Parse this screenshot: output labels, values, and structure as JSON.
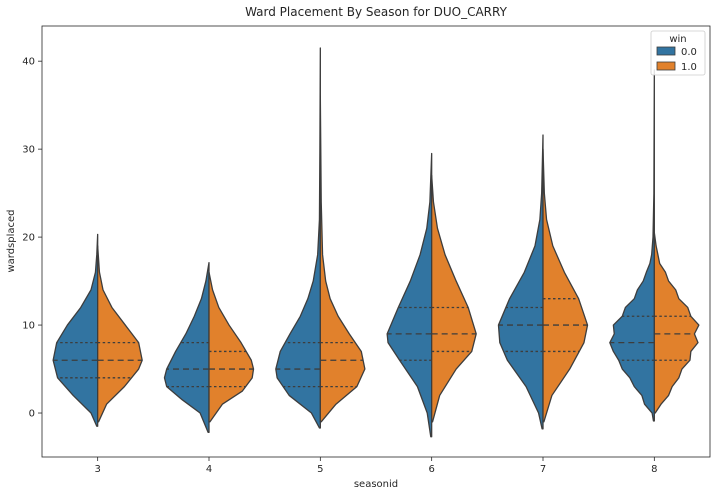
{
  "chart_data": {
    "type": "violin",
    "title": "Ward Placement By Season for DUO_CARRY",
    "xlabel": "seasonid",
    "ylabel": "wardsplaced",
    "categories": [
      "3",
      "4",
      "5",
      "6",
      "7",
      "8"
    ],
    "yticks": [
      0,
      10,
      20,
      30,
      40
    ],
    "ylim": [
      -5,
      44
    ],
    "legend": {
      "title": "win",
      "placement": "top-right",
      "entries": [
        "0.0",
        "1.0"
      ]
    },
    "colors": {
      "0.0": "#3274a1",
      "1.0": "#e1812c",
      "outline": "#3d3d3d"
    },
    "split": true,
    "inner": "quartile",
    "series": [
      {
        "name": "0.0",
        "violins": [
          {
            "ymin": -1.5,
            "ymax": 20.3,
            "quartiles": [
              4,
              6,
              8
            ],
            "profile": [
              [
                -1.5,
                0.02
              ],
              [
                0,
                0.15
              ],
              [
                2,
                0.55
              ],
              [
                4,
                0.9
              ],
              [
                6,
                1.0
              ],
              [
                8,
                0.92
              ],
              [
                10,
                0.68
              ],
              [
                12,
                0.38
              ],
              [
                14,
                0.15
              ],
              [
                16,
                0.05
              ],
              [
                18,
                0.02
              ],
              [
                20.3,
                0.0
              ]
            ]
          },
          {
            "ymin": -2.2,
            "ymax": 17.1,
            "quartiles": [
              3,
              5,
              8
            ],
            "profile": [
              [
                -2.2,
                0.02
              ],
              [
                0,
                0.2
              ],
              [
                1.5,
                0.6
              ],
              [
                3,
                0.95
              ],
              [
                4,
                1.0
              ],
              [
                5,
                0.95
              ],
              [
                7,
                0.75
              ],
              [
                9,
                0.52
              ],
              [
                11,
                0.33
              ],
              [
                13,
                0.17
              ],
              [
                15,
                0.07
              ],
              [
                17.1,
                0.0
              ]
            ]
          },
          {
            "ymin": -1.7,
            "ymax": 41.5,
            "quartiles": [
              3,
              5,
              8
            ],
            "profile": [
              [
                -1.7,
                0.02
              ],
              [
                0,
                0.2
              ],
              [
                2,
                0.7
              ],
              [
                4,
                0.97
              ],
              [
                5,
                1.0
              ],
              [
                7,
                0.9
              ],
              [
                9,
                0.68
              ],
              [
                11,
                0.45
              ],
              [
                13,
                0.28
              ],
              [
                15,
                0.16
              ],
              [
                18,
                0.06
              ],
              [
                22,
                0.02
              ],
              [
                30,
                0.01
              ],
              [
                41.5,
                0.0
              ]
            ]
          },
          {
            "ymin": -2.7,
            "ymax": 29.5,
            "quartiles": [
              6,
              9,
              12
            ],
            "profile": [
              [
                -2.7,
                0.02
              ],
              [
                0,
                0.1
              ],
              [
                3,
                0.32
              ],
              [
                6,
                0.72
              ],
              [
                8,
                0.98
              ],
              [
                9,
                1.0
              ],
              [
                12,
                0.75
              ],
              [
                15,
                0.48
              ],
              [
                18,
                0.26
              ],
              [
                21,
                0.11
              ],
              [
                24,
                0.04
              ],
              [
                29.5,
                0.0
              ]
            ]
          },
          {
            "ymin": -1.8,
            "ymax": 31.6,
            "quartiles": [
              7,
              10,
              12
            ],
            "profile": [
              [
                -1.8,
                0.02
              ],
              [
                0,
                0.1
              ],
              [
                3,
                0.38
              ],
              [
                6,
                0.8
              ],
              [
                8,
                0.97
              ],
              [
                10,
                1.0
              ],
              [
                13,
                0.75
              ],
              [
                16,
                0.42
              ],
              [
                19,
                0.18
              ],
              [
                22,
                0.07
              ],
              [
                25,
                0.03
              ],
              [
                31.6,
                0.0
              ]
            ]
          },
          {
            "ymin": -0.9,
            "ymax": 39.0,
            "quartiles": [
              6,
              8,
              11
            ],
            "profile": [
              [
                -0.9,
                0.02
              ],
              [
                0,
                0.05
              ],
              [
                1,
                0.22
              ],
              [
                2,
                0.28
              ],
              [
                3,
                0.45
              ],
              [
                4,
                0.55
              ],
              [
                5,
                0.72
              ],
              [
                6,
                0.8
              ],
              [
                7,
                0.92
              ],
              [
                8,
                1.0
              ],
              [
                9,
                0.9
              ],
              [
                10,
                0.92
              ],
              [
                11,
                0.72
              ],
              [
                12,
                0.65
              ],
              [
                13,
                0.45
              ],
              [
                14,
                0.38
              ],
              [
                15,
                0.25
              ],
              [
                16,
                0.18
              ],
              [
                17,
                0.1
              ],
              [
                18,
                0.06
              ],
              [
                20,
                0.03
              ],
              [
                25,
                0.01
              ],
              [
                39,
                0.0
              ]
            ]
          }
        ]
      },
      {
        "name": "1.0",
        "violins": [
          {
            "ymin": -1.0,
            "ymax": 19.0,
            "quartiles": [
              4,
              6,
              8
            ],
            "profile": [
              [
                -1,
                0.02
              ],
              [
                1,
                0.2
              ],
              [
                3,
                0.6
              ],
              [
                5,
                0.92
              ],
              [
                6,
                1.0
              ],
              [
                8,
                0.92
              ],
              [
                10,
                0.62
              ],
              [
                12,
                0.32
              ],
              [
                14,
                0.12
              ],
              [
                16,
                0.04
              ],
              [
                19,
                0.0
              ]
            ]
          },
          {
            "ymin": -1.0,
            "ymax": 16.0,
            "quartiles": [
              3,
              5,
              7
            ],
            "profile": [
              [
                -1,
                0.02
              ],
              [
                1,
                0.3
              ],
              [
                2.5,
                0.75
              ],
              [
                4,
                0.97
              ],
              [
                5,
                1.0
              ],
              [
                6,
                0.95
              ],
              [
                8,
                0.72
              ],
              [
                10,
                0.45
              ],
              [
                12,
                0.22
              ],
              [
                14,
                0.08
              ],
              [
                16,
                0.0
              ]
            ]
          },
          {
            "ymin": -1.0,
            "ymax": 36.0,
            "quartiles": [
              3,
              6,
              8
            ],
            "profile": [
              [
                -1,
                0.02
              ],
              [
                1,
                0.35
              ],
              [
                3,
                0.82
              ],
              [
                5,
                1.0
              ],
              [
                7,
                0.92
              ],
              [
                9,
                0.65
              ],
              [
                11,
                0.4
              ],
              [
                13,
                0.22
              ],
              [
                15,
                0.12
              ],
              [
                18,
                0.05
              ],
              [
                24,
                0.02
              ],
              [
                36,
                0.0
              ]
            ]
          },
          {
            "ymin": -1.0,
            "ymax": 27.0,
            "quartiles": [
              7,
              9,
              12
            ],
            "profile": [
              [
                -1,
                0.02
              ],
              [
                2,
                0.18
              ],
              [
                5,
                0.55
              ],
              [
                7,
                0.9
              ],
              [
                9,
                1.0
              ],
              [
                12,
                0.82
              ],
              [
                15,
                0.55
              ],
              [
                18,
                0.3
              ],
              [
                21,
                0.13
              ],
              [
                24,
                0.04
              ],
              [
                27,
                0.0
              ]
            ]
          },
          {
            "ymin": -1.0,
            "ymax": 30.0,
            "quartiles": [
              7,
              10,
              13
            ],
            "profile": [
              [
                -1,
                0.02
              ],
              [
                2,
                0.2
              ],
              [
                5,
                0.6
              ],
              [
                8,
                0.92
              ],
              [
                10,
                1.0
              ],
              [
                13,
                0.8
              ],
              [
                16,
                0.48
              ],
              [
                19,
                0.22
              ],
              [
                22,
                0.08
              ],
              [
                25,
                0.03
              ],
              [
                30,
                0.0
              ]
            ]
          },
          {
            "ymin": 0.0,
            "ymax": 20.5,
            "quartiles": [
              6,
              9,
              11
            ],
            "profile": [
              [
                0,
                0.02
              ],
              [
                1,
                0.15
              ],
              [
                2,
                0.32
              ],
              [
                3,
                0.4
              ],
              [
                4,
                0.55
              ],
              [
                5,
                0.62
              ],
              [
                6,
                0.8
              ],
              [
                7,
                0.82
              ],
              [
                8,
                0.98
              ],
              [
                9,
                0.9
              ],
              [
                10,
                1.0
              ],
              [
                11,
                0.82
              ],
              [
                12,
                0.75
              ],
              [
                13,
                0.55
              ],
              [
                14,
                0.48
              ],
              [
                15,
                0.32
              ],
              [
                16,
                0.25
              ],
              [
                17,
                0.12
              ],
              [
                18,
                0.08
              ],
              [
                19,
                0.04
              ],
              [
                20.5,
                0.0
              ]
            ]
          }
        ]
      }
    ]
  }
}
